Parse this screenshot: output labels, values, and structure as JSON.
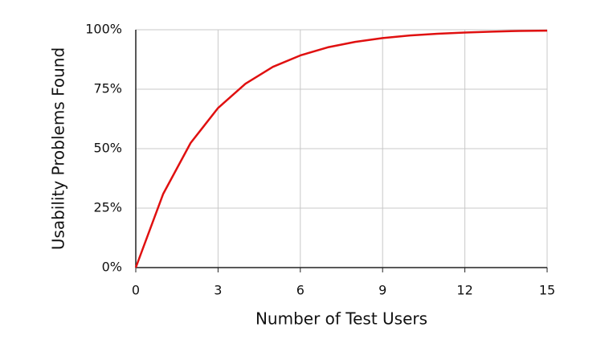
{
  "chart_data": {
    "type": "line",
    "x_label": "Number of Test Users",
    "y_label": "Usability Problems Found",
    "x": [
      0,
      1,
      2,
      3,
      4,
      5,
      6,
      7,
      8,
      9,
      10,
      11,
      12,
      13,
      14,
      15
    ],
    "values": [
      0,
      31,
      52.4,
      67.1,
      77.3,
      84.4,
      89.2,
      92.6,
      94.9,
      96.5,
      97.6,
      98.3,
      98.8,
      99.2,
      99.5,
      99.6
    ],
    "color": "#e01010",
    "xlim": [
      0,
      15
    ],
    "xticks": [
      0,
      3,
      6,
      9,
      12,
      15
    ],
    "ylim": [
      0,
      100
    ],
    "yticks": [
      {
        "value": 0,
        "label": "0%"
      },
      {
        "value": 25,
        "label": "25%"
      },
      {
        "value": 50,
        "label": "50%"
      },
      {
        "value": 75,
        "label": "75%"
      },
      {
        "value": 100,
        "label": "100%"
      }
    ],
    "grid": true
  }
}
